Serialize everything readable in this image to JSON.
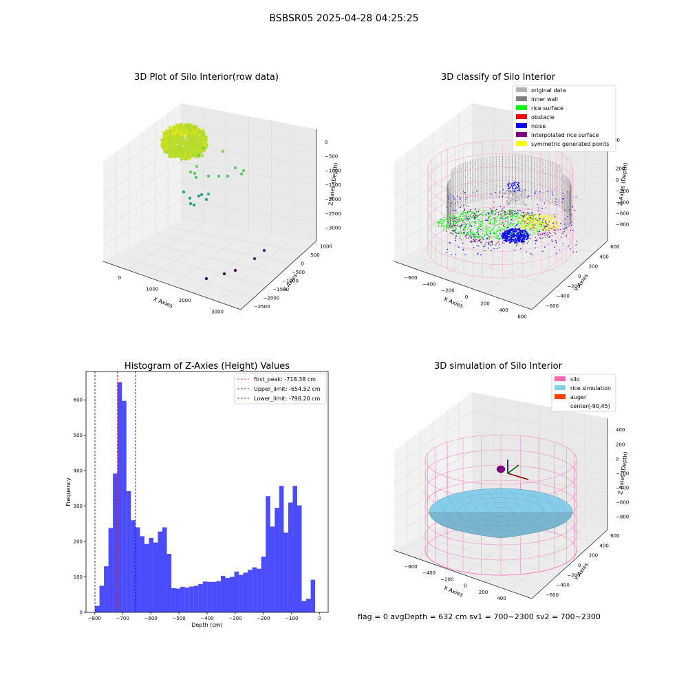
{
  "figure": {
    "suptitle": "BSBSR05 2025-04-28 04:25:25",
    "flag_text": "flag = 0     avgDepth = 632 cm  sv1 = 700~2300  sv2 = 700~2300"
  },
  "colors": {
    "original_data": "#b3b3b3",
    "inner_wall": "#808080",
    "rice_surface": "#00ff00",
    "obstacle": "#ff0000",
    "noise": "#0000ff",
    "interpolated_rice_surface": "#800080",
    "symmetric_generated_points": "#ffff00",
    "silo": "#ff69b4",
    "rice_simulation": "#87ceeb",
    "auger": "#ff4500",
    "hist_bar": "#0000ff",
    "first_peak_line": "#ff0000",
    "limit_line": "#0000aa"
  },
  "panel_a": {
    "title": "3D Plot of Silo Interior(row data)",
    "xlabel": "X Axies",
    "ylabel": "Y Axies",
    "zlabel": "Z Axies (Depth)",
    "xticks": [
      "0",
      "1000",
      "2000",
      "3000"
    ],
    "yticks": [
      "1000",
      "500",
      "0",
      "−500",
      "−1000",
      "−1500",
      "−2000",
      "−2500"
    ],
    "zticks": [
      "0",
      "−500",
      "−1000",
      "−1500",
      "−2000",
      "−2500",
      "−3000"
    ]
  },
  "panel_b": {
    "title": "3D classify of Silo Interior",
    "xlabel": "X Axies",
    "ylabel": "Y Axies",
    "zlabel": "Z Axies (Depth)",
    "xticks": [
      "−600",
      "−400",
      "−200",
      "0",
      "200",
      "400",
      "600"
    ],
    "yticks": [
      "600",
      "400",
      "200",
      "0",
      "−200",
      "−400",
      "−600"
    ],
    "zticks": [
      "200",
      "0",
      "−200",
      "−400",
      "−600",
      "−800"
    ],
    "ztick_top_partial": "00",
    "legend": [
      {
        "label": "original data",
        "color_key": "original_data"
      },
      {
        "label": "inner wall",
        "color_key": "inner_wall"
      },
      {
        "label": "rice surface",
        "color_key": "rice_surface"
      },
      {
        "label": "obstacle",
        "color_key": "obstacle"
      },
      {
        "label": "noise",
        "color_key": "noise"
      },
      {
        "label": "interpolated rice surface",
        "color_key": "interpolated_rice_surface"
      },
      {
        "label": "symmetric generated points",
        "color_key": "symmetric_generated_points"
      }
    ]
  },
  "panel_d": {
    "title": "3D simulation of Silo Interior",
    "xlabel": "X Axies",
    "ylabel": "Y Axies",
    "zlabel": "Z Axies (Depth)",
    "xticks": [
      "−600",
      "−400",
      "−200",
      "0",
      "200",
      "400"
    ],
    "yticks": [
      "600",
      "400",
      "200",
      "0",
      "−200",
      "−400",
      "−600"
    ],
    "zticks": [
      "400",
      "200",
      "0",
      "−200",
      "−400",
      "−600",
      "−800"
    ],
    "legend": [
      {
        "label": "silo",
        "color_key": "silo"
      },
      {
        "label": "rice simulation",
        "color_key": "rice_simulation"
      },
      {
        "label": "auger",
        "color_key": "auger"
      },
      {
        "label": "center(-90,45)",
        "color_key": ""
      }
    ]
  },
  "chart_data": {
    "type": "bar",
    "title": "Histogram of Z-Axies (Height) Values",
    "xlabel": "Depth (cm)",
    "ylabel": "Frequency",
    "xlim": [
      -830,
      30
    ],
    "ylim": [
      0,
      680
    ],
    "xticks": [
      -800,
      -700,
      -600,
      -500,
      -400,
      -300,
      -200,
      -100,
      0
    ],
    "yticks": [
      0,
      100,
      200,
      300,
      400,
      500,
      600
    ],
    "bin_start": -798.2,
    "bin_width": 15.96,
    "values": [
      18,
      75,
      130,
      238,
      392,
      650,
      597,
      342,
      260,
      240,
      215,
      193,
      210,
      197,
      228,
      240,
      165,
      68,
      67,
      72,
      70,
      73,
      75,
      80,
      87,
      86,
      86,
      88,
      103,
      97,
      100,
      115,
      106,
      112,
      120,
      127,
      123,
      157,
      328,
      242,
      295,
      357,
      225,
      310,
      357,
      302,
      32,
      38,
      92
    ],
    "vlines": [
      {
        "label": "first_peak: -718.38 cm",
        "x": -718.38,
        "color_key": "first_peak_line"
      },
      {
        "label": "Upper_limit: -654.52 cm",
        "x": -654.52,
        "color_key": "limit_line"
      },
      {
        "label": "Lower_limit: -798.20 cm",
        "x": -798.2,
        "color_key": "limit_line"
      }
    ],
    "legend_position": "top-right",
    "grid": false
  }
}
